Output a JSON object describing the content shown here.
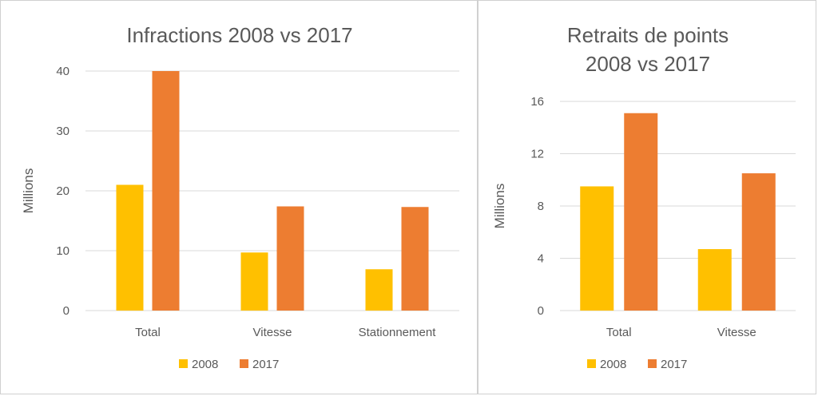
{
  "chart_data": [
    {
      "type": "bar",
      "title": "Infractions 2008 vs 2017",
      "title_lines": [
        "Infractions 2008 vs 2017"
      ],
      "ylabel": "Millions",
      "xlabel": "",
      "categories": [
        "Total",
        "Vitesse",
        "Stationnement"
      ],
      "series": [
        {
          "name": "2008",
          "color": "#FFC000",
          "values": [
            21,
            9.7,
            6.9
          ]
        },
        {
          "name": "2017",
          "color": "#ED7D31",
          "values": [
            40,
            17.4,
            17.3
          ]
        }
      ],
      "ylim": [
        0,
        40
      ],
      "yticks": [
        0,
        10,
        20,
        30,
        40
      ],
      "grid": true,
      "legend": "bottom"
    },
    {
      "type": "bar",
      "title": "Retraits de points 2008 vs 2017",
      "title_lines": [
        "Retraits de points",
        "2008 vs 2017"
      ],
      "ylabel": "Millions",
      "xlabel": "",
      "categories": [
        "Total",
        "Vitesse"
      ],
      "series": [
        {
          "name": "2008",
          "color": "#FFC000",
          "values": [
            9.5,
            4.7
          ]
        },
        {
          "name": "2017",
          "color": "#ED7D31",
          "values": [
            15.1,
            10.5
          ]
        }
      ],
      "ylim": [
        0,
        16
      ],
      "yticks": [
        0,
        4,
        8,
        12,
        16
      ],
      "grid": true,
      "legend": "bottom"
    }
  ]
}
